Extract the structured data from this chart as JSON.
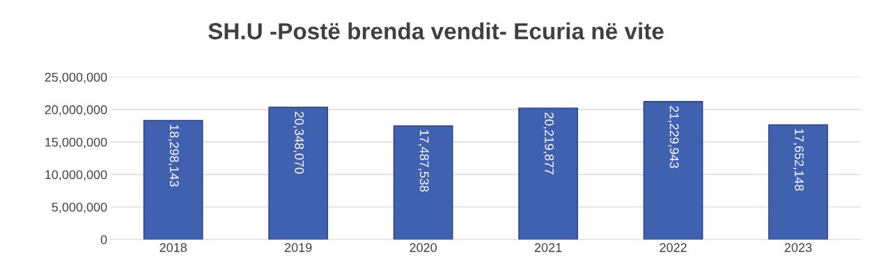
{
  "chart_data": {
    "type": "bar",
    "title": "SH.U -Postë brenda vendit- Ecuria në vite",
    "categories": [
      "2018",
      "2019",
      "2020",
      "2021",
      "2022",
      "2023"
    ],
    "values": [
      18298143,
      20348070,
      17487538,
      20219877,
      21229943,
      17652148
    ],
    "value_labels": [
      "18,298,143",
      "20,348,070",
      "17,487,538",
      "20,219,877",
      "21,229,943",
      "17,652,148"
    ],
    "color": "#4060b0",
    "ylim": [
      0,
      25000000
    ],
    "yticks": [
      {
        "value": 0,
        "label": "0"
      },
      {
        "value": 5000000,
        "label": "5,000,000"
      },
      {
        "value": 10000000,
        "label": "10,000,000"
      },
      {
        "value": 15000000,
        "label": "15,000,000"
      },
      {
        "value": 20000000,
        "label": "20,000,000"
      },
      {
        "value": 25000000,
        "label": "25,000,000"
      }
    ],
    "grid": "y"
  }
}
